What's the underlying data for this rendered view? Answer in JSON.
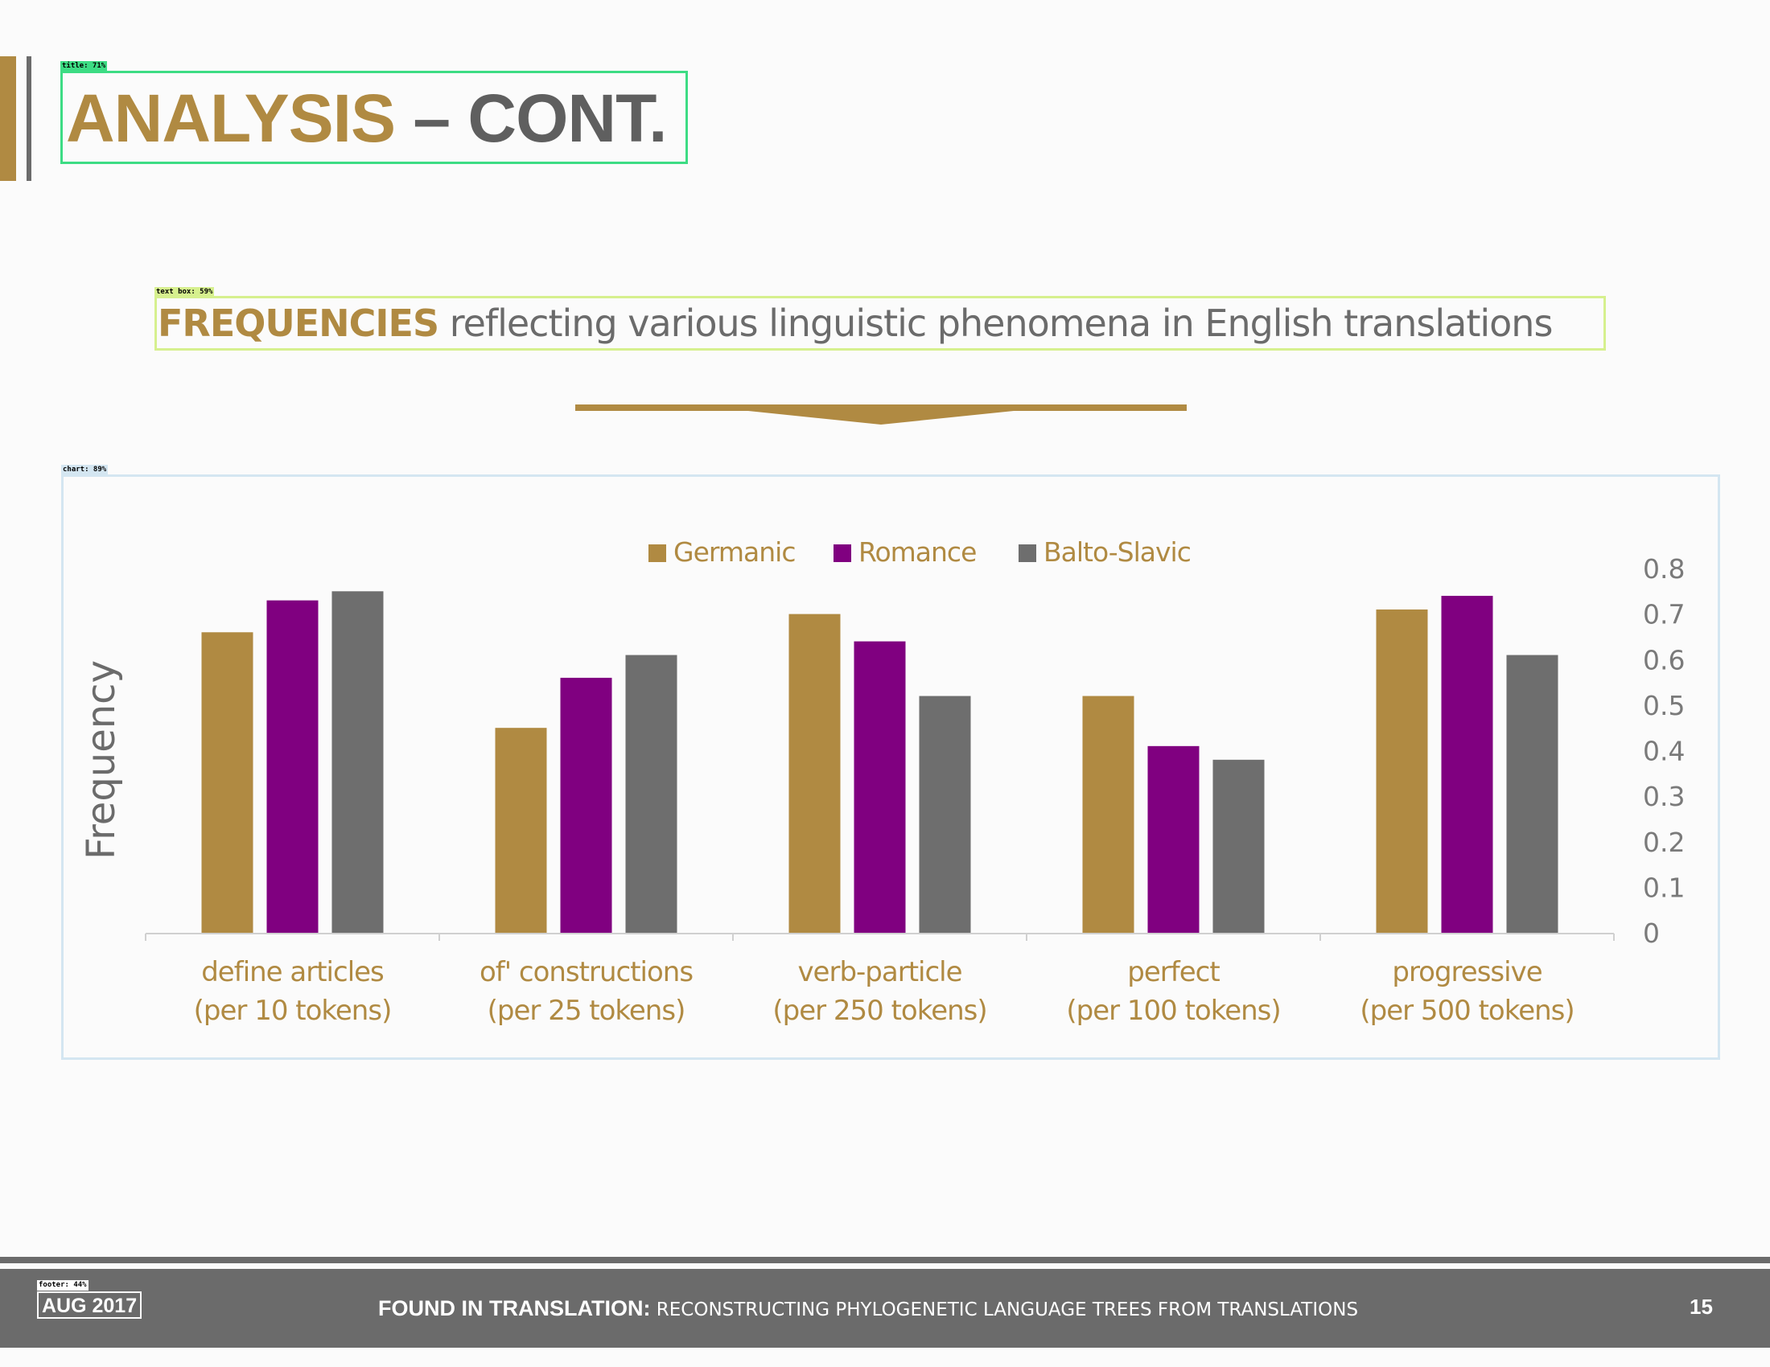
{
  "slide": {
    "title_part1": "ANALYSIS",
    "title_part2": " – CONT.",
    "subtitle_strong": "FREQUENCIES",
    "subtitle_rest": " reflecting various linguistic phenomena in English translations"
  },
  "detections": {
    "title": "title: 71%",
    "text_box": "text box: 59%",
    "chart": "chart: 89%",
    "footer": "footer: 44%"
  },
  "chart_data": {
    "type": "bar",
    "categories": [
      [
        "define articles",
        "(per 10 tokens)"
      ],
      [
        "of' constructions",
        "(per 25 tokens)"
      ],
      [
        "verb-particle",
        "(per 250 tokens)"
      ],
      [
        "perfect",
        "(per 100 tokens)"
      ],
      [
        "progressive",
        "(per 500 tokens)"
      ]
    ],
    "series": [
      {
        "name": "Germanic",
        "color": "#b08a42",
        "values": [
          0.66,
          0.45,
          0.7,
          0.52,
          0.71
        ]
      },
      {
        "name": "Romance",
        "color": "#800080",
        "values": [
          0.73,
          0.56,
          0.64,
          0.41,
          0.74
        ]
      },
      {
        "name": "Balto-Slavic",
        "color": "#6e6e6e",
        "values": [
          0.75,
          0.61,
          0.52,
          0.38,
          0.61
        ]
      }
    ],
    "ylabel": "Frequency",
    "ylim": [
      0,
      0.8
    ],
    "yticks": [
      "0",
      "0.1",
      "0.2",
      "0.3",
      "0.4",
      "0.5",
      "0.6",
      "0.7",
      "0.8"
    ],
    "y_axis_side": "right",
    "legend_position": "top",
    "grid": false
  },
  "footer": {
    "date": "AUG 2017",
    "title_strong": "FOUND IN TRANSLATION:",
    "title_rest": " RECONSTRUCTING PHYLOGENETIC LANGUAGE TREES FROM TRANSLATIONS",
    "page": "15"
  }
}
